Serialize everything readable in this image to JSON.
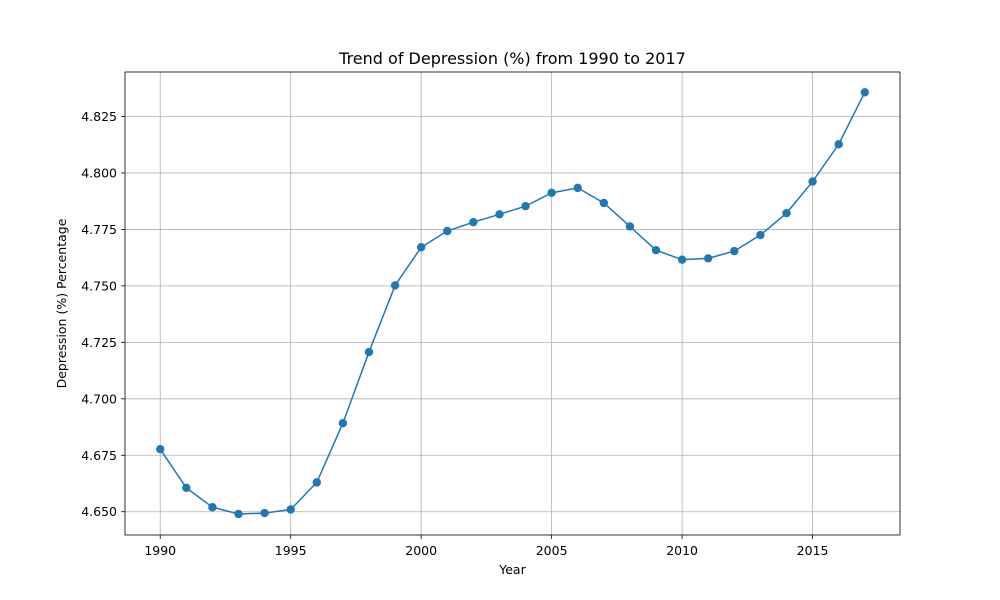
{
  "chart_data": {
    "type": "line",
    "title": "Trend of Depression (%) from 1990 to 2017",
    "xlabel": "Year",
    "ylabel": "Depression (%) Percentage",
    "xlim": [
      1988.65,
      2018.35
    ],
    "ylim": [
      4.6397,
      4.8447
    ],
    "xticks": [
      1990,
      1995,
      2000,
      2005,
      2010,
      2015
    ],
    "yticks": [
      4.65,
      4.675,
      4.7,
      4.725,
      4.75,
      4.775,
      4.8,
      4.825
    ],
    "ytick_labels": [
      "4.650",
      "4.675",
      "4.700",
      "4.725",
      "4.750",
      "4.775",
      "4.800",
      "4.825"
    ],
    "grid": true,
    "series": [
      {
        "color": "#1f77b4",
        "marker": "circle",
        "x": [
          1990,
          1991,
          1992,
          1993,
          1994,
          1995,
          1996,
          1997,
          1998,
          1999,
          2000,
          2001,
          2002,
          2003,
          2004,
          2005,
          2006,
          2007,
          2008,
          2009,
          2010,
          2011,
          2012,
          2013,
          2014,
          2015,
          2016,
          2017
        ],
        "values": [
          4.6777,
          4.6606,
          4.652,
          4.649,
          4.6494,
          4.651,
          4.663,
          4.6892,
          4.7207,
          4.7502,
          4.7671,
          4.7743,
          4.7782,
          4.7817,
          4.7853,
          4.7912,
          4.7934,
          4.7867,
          4.7763,
          4.7658,
          4.7616,
          4.7622,
          4.7654,
          4.7725,
          4.7822,
          4.7962,
          4.8127,
          4.8357
        ]
      }
    ]
  }
}
